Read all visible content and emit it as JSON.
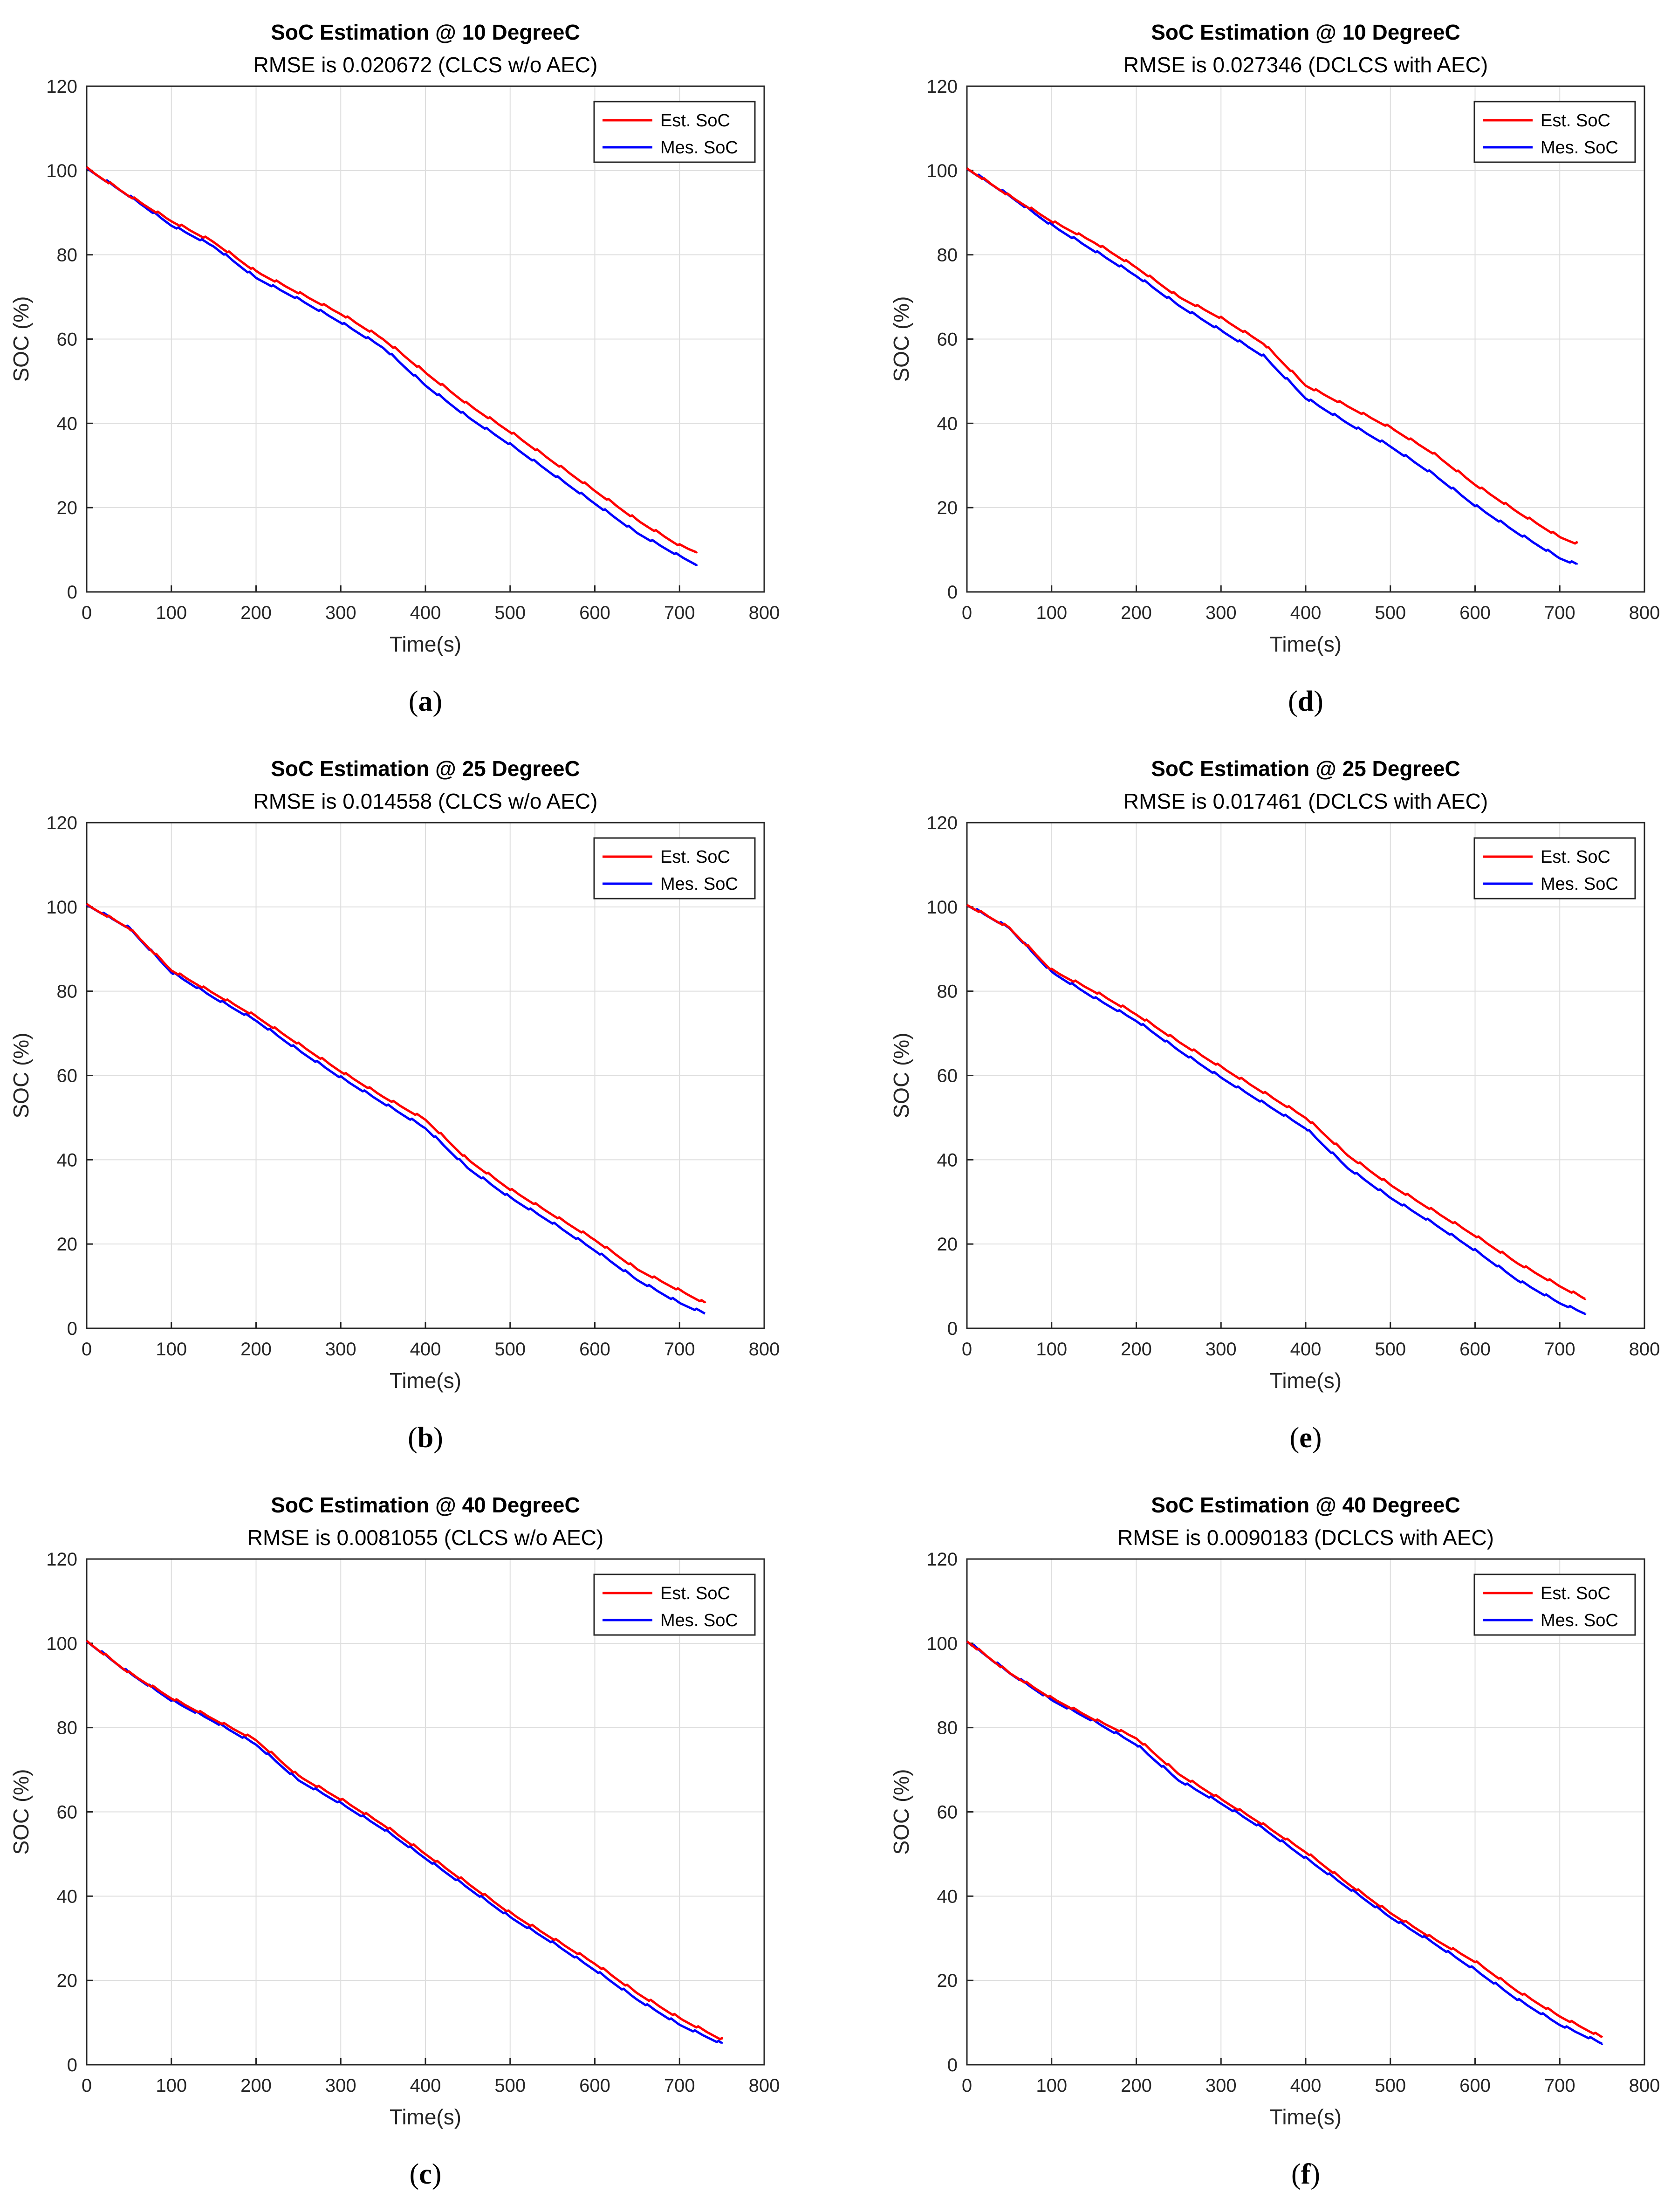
{
  "chart_data": [
    {
      "type": "line",
      "panel": "a",
      "title": "SoC Estimation @ 10 DegreeC",
      "subtitle": "RMSE is 0.020672 (CLCS w/o AEC)",
      "xlabel": "Time(s)",
      "ylabel": "SOC (%)",
      "xlim": [
        0,
        800
      ],
      "ylim": [
        0,
        120
      ],
      "xticks": [
        "0",
        "100",
        "200",
        "300",
        "400",
        "500",
        "600",
        "700",
        "800"
      ],
      "yticks": [
        "0",
        "20",
        "40",
        "60",
        "80",
        "100",
        "120"
      ],
      "grid": true,
      "legend_position": "top-right",
      "series": [
        {
          "name": "Est. SoC",
          "color": "#ff0000",
          "x": [
            0,
            50,
            100,
            150,
            200,
            250,
            300,
            350,
            400,
            450,
            500,
            550,
            600,
            650,
            700,
            720
          ],
          "y": [
            100.5,
            94,
            88,
            83,
            76,
            71,
            66,
            60,
            52,
            44.5,
            38,
            31,
            24,
            17,
            11,
            9.5
          ]
        },
        {
          "name": "Mes. SoC",
          "color": "#0000ff",
          "x": [
            0,
            50,
            100,
            150,
            200,
            250,
            300,
            350,
            400,
            450,
            500,
            550,
            600,
            650,
            700,
            720
          ],
          "y": [
            100.5,
            94,
            87,
            82,
            74.5,
            69.5,
            64,
            58,
            49,
            41.5,
            35,
            28,
            21,
            14,
            8.5,
            6.5
          ]
        }
      ],
      "caption_label": "a"
    },
    {
      "type": "line",
      "panel": "b",
      "title": "SoC Estimation @ 25 DegreeC",
      "subtitle": "RMSE is 0.014558 (CLCS w/o AEC)",
      "xlabel": "Time(s)",
      "ylabel": "SOC (%)",
      "xlim": [
        0,
        800
      ],
      "ylim": [
        0,
        120
      ],
      "xticks": [
        "0",
        "100",
        "200",
        "300",
        "400",
        "500",
        "600",
        "700",
        "800"
      ],
      "yticks": [
        "0",
        "20",
        "40",
        "60",
        "80",
        "100",
        "120"
      ],
      "grid": true,
      "legend_position": "top-right",
      "series": [
        {
          "name": "Est. SoC",
          "color": "#ff0000",
          "x": [
            0,
            50,
            100,
            150,
            200,
            250,
            300,
            350,
            400,
            450,
            500,
            550,
            600,
            650,
            700,
            730
          ],
          "y": [
            100.5,
            95,
            85,
            79.5,
            74,
            67.5,
            61,
            55,
            49.5,
            40,
            33,
            27,
            21,
            14,
            9,
            6
          ]
        },
        {
          "name": "Mes. SoC",
          "color": "#0000ff",
          "x": [
            0,
            50,
            100,
            150,
            200,
            250,
            300,
            350,
            400,
            450,
            500,
            550,
            600,
            650,
            700,
            730
          ],
          "y": [
            100.5,
            95,
            84.5,
            78.5,
            73,
            66,
            59.5,
            53.5,
            47.5,
            38,
            31,
            25,
            18.5,
            11.5,
            6,
            3.5
          ]
        }
      ],
      "caption_label": "b"
    },
    {
      "type": "line",
      "panel": "c",
      "title": "SoC Estimation @ 40 DegreeC",
      "subtitle": "RMSE is 0.0081055 (CLCS w/o AEC)",
      "xlabel": "Time(s)",
      "ylabel": "SOC (%)",
      "xlim": [
        0,
        800
      ],
      "ylim": [
        0,
        120
      ],
      "xticks": [
        "0",
        "100",
        "200",
        "300",
        "400",
        "500",
        "600",
        "700",
        "800"
      ],
      "yticks": [
        "0",
        "20",
        "40",
        "60",
        "80",
        "100",
        "120"
      ],
      "grid": true,
      "legend_position": "top-right",
      "series": [
        {
          "name": "Est. SoC",
          "color": "#ff0000",
          "x": [
            0,
            50,
            100,
            150,
            200,
            250,
            300,
            350,
            400,
            450,
            500,
            550,
            600,
            650,
            700,
            750
          ],
          "y": [
            100.5,
            93,
            87,
            82,
            77,
            68.5,
            63,
            57,
            50,
            43,
            36,
            30,
            24,
            17,
            11,
            6
          ]
        },
        {
          "name": "Mes. SoC",
          "color": "#0000ff",
          "x": [
            0,
            50,
            100,
            150,
            200,
            250,
            300,
            350,
            400,
            450,
            500,
            550,
            600,
            650,
            700,
            750
          ],
          "y": [
            100.5,
            93,
            86.5,
            81.5,
            76,
            67.5,
            62,
            56,
            49,
            42,
            35,
            29,
            22.5,
            15.5,
            9.5,
            5
          ]
        }
      ],
      "caption_label": "c"
    },
    {
      "type": "line",
      "panel": "d",
      "title": "SoC Estimation @ 10 DegreeC",
      "subtitle": "RMSE is 0.027346 (DCLCS with AEC)",
      "xlabel": "Time(s)",
      "ylabel": "SOC (%)",
      "xlim": [
        0,
        800
      ],
      "ylim": [
        0,
        120
      ],
      "xticks": [
        "0",
        "100",
        "200",
        "300",
        "400",
        "500",
        "600",
        "700",
        "800"
      ],
      "yticks": [
        "0",
        "20",
        "40",
        "60",
        "80",
        "100",
        "120"
      ],
      "grid": true,
      "legend_position": "top-right",
      "series": [
        {
          "name": "Est. SoC",
          "color": "#ff0000",
          "x": [
            0,
            50,
            100,
            150,
            200,
            250,
            300,
            350,
            400,
            450,
            500,
            550,
            600,
            650,
            700,
            720
          ],
          "y": [
            100.5,
            94,
            88,
            83,
            77,
            70,
            65,
            59,
            49,
            44,
            39,
            33,
            25.5,
            19,
            13,
            11.5
          ]
        },
        {
          "name": "Mes. SoC",
          "color": "#0000ff",
          "x": [
            0,
            50,
            100,
            150,
            200,
            250,
            300,
            350,
            400,
            450,
            500,
            550,
            600,
            650,
            700,
            720
          ],
          "y": [
            100.5,
            94,
            87,
            81,
            75,
            68,
            62,
            56,
            46,
            40,
            34.5,
            28,
            20.5,
            14,
            8,
            6.5
          ]
        }
      ],
      "caption_label": "d"
    },
    {
      "type": "line",
      "panel": "e",
      "title": "SoC Estimation @ 25 DegreeC",
      "subtitle": "RMSE is 0.017461 (DCLCS with AEC)",
      "xlabel": "Time(s)",
      "ylabel": "SOC (%)",
      "xlim": [
        0,
        800
      ],
      "ylim": [
        0,
        120
      ],
      "xticks": [
        "0",
        "100",
        "200",
        "300",
        "400",
        "500",
        "600",
        "700",
        "800"
      ],
      "yticks": [
        "0",
        "20",
        "40",
        "60",
        "80",
        "100",
        "120"
      ],
      "grid": true,
      "legend_position": "top-right",
      "series": [
        {
          "name": "Est. SoC",
          "color": "#ff0000",
          "x": [
            0,
            50,
            100,
            150,
            200,
            250,
            300,
            350,
            400,
            450,
            500,
            550,
            600,
            650,
            700,
            730
          ],
          "y": [
            100.5,
            95,
            85,
            80,
            74.5,
            68,
            62,
            56,
            50,
            41,
            34,
            28,
            22,
            15.5,
            10,
            7
          ]
        },
        {
          "name": "Mes. SoC",
          "color": "#0000ff",
          "x": [
            0,
            50,
            100,
            150,
            200,
            250,
            300,
            350,
            400,
            450,
            500,
            550,
            600,
            650,
            700,
            730
          ],
          "y": [
            100.5,
            95,
            84.5,
            78.5,
            73,
            66,
            59.5,
            53.5,
            47.5,
            38,
            31,
            25,
            18.5,
            11.5,
            6,
            3.5
          ]
        }
      ],
      "caption_label": "e"
    },
    {
      "type": "line",
      "panel": "f",
      "title": "SoC Estimation @ 40 DegreeC",
      "subtitle": "RMSE is 0.0090183 (DCLCS with AEC)",
      "xlabel": "Time(s)",
      "ylabel": "SOC (%)",
      "xlim": [
        0,
        800
      ],
      "ylim": [
        0,
        120
      ],
      "xticks": [
        "0",
        "100",
        "200",
        "300",
        "400",
        "500",
        "600",
        "700",
        "800"
      ],
      "yticks": [
        "0",
        "20",
        "40",
        "60",
        "80",
        "100",
        "120"
      ],
      "grid": true,
      "legend_position": "top-right",
      "series": [
        {
          "name": "Est. SoC",
          "color": "#ff0000",
          "x": [
            0,
            50,
            100,
            150,
            200,
            250,
            300,
            350,
            400,
            450,
            500,
            550,
            600,
            650,
            700,
            750
          ],
          "y": [
            100.5,
            93,
            87,
            82,
            77.5,
            69,
            63,
            57,
            50.5,
            43,
            36,
            30,
            24.5,
            17.5,
            11.5,
            6.5
          ]
        },
        {
          "name": "Mes. SoC",
          "color": "#0000ff",
          "x": [
            0,
            50,
            100,
            150,
            200,
            250,
            300,
            350,
            400,
            450,
            500,
            550,
            600,
            650,
            700,
            750
          ],
          "y": [
            100.5,
            93,
            86.5,
            81.5,
            76,
            67.5,
            62,
            56,
            49,
            42,
            35,
            29,
            22.5,
            15.5,
            9.5,
            5
          ]
        }
      ],
      "caption_label": "f"
    }
  ]
}
